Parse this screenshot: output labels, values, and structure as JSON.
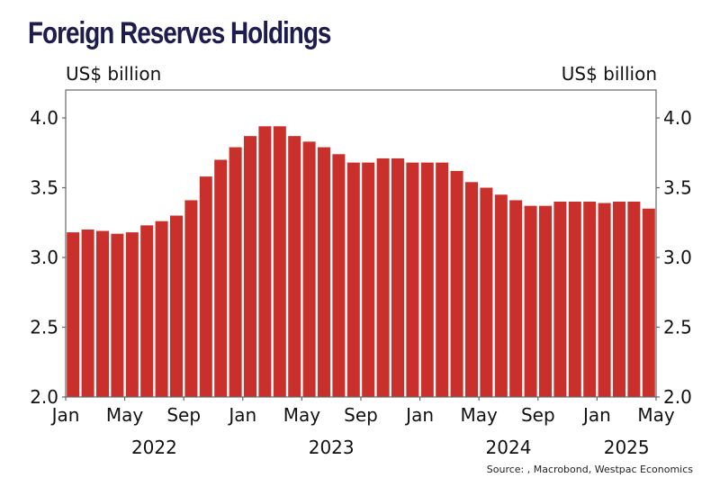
{
  "title": "Foreign Reserves Holdings",
  "left_unit": "US$ billion",
  "right_unit": "US$ billion",
  "source": "Source: , Macrobond, Westpac Economics",
  "colors": {
    "bar": "#c9302c",
    "title": "#1e1b4d",
    "axis": "#666666"
  },
  "chart_data": {
    "type": "bar",
    "title": "Foreign Reserves Holdings",
    "xlabel": "",
    "ylabel": "US$ billion",
    "ylim": [
      2.0,
      4.2
    ],
    "yticks": [
      "2.0",
      "2.5",
      "3.0",
      "3.5",
      "4.0"
    ],
    "ytick_values": [
      2.0,
      2.5,
      3.0,
      3.5,
      4.0
    ],
    "grid": false,
    "legend": "none",
    "categories": [
      "2022-01",
      "2022-02",
      "2022-03",
      "2022-04",
      "2022-05",
      "2022-06",
      "2022-07",
      "2022-08",
      "2022-09",
      "2022-10",
      "2022-11",
      "2022-12",
      "2023-01",
      "2023-02",
      "2023-03",
      "2023-04",
      "2023-05",
      "2023-06",
      "2023-07",
      "2023-08",
      "2023-09",
      "2023-10",
      "2023-11",
      "2023-12",
      "2024-01",
      "2024-02",
      "2024-03",
      "2024-04",
      "2024-05",
      "2024-06",
      "2024-07",
      "2024-08",
      "2024-09",
      "2024-10",
      "2024-11",
      "2024-12",
      "2025-01",
      "2025-02",
      "2025-03",
      "2025-04"
    ],
    "values": [
      3.18,
      3.2,
      3.19,
      3.17,
      3.18,
      3.23,
      3.26,
      3.3,
      3.41,
      3.58,
      3.7,
      3.79,
      3.87,
      3.94,
      3.94,
      3.87,
      3.83,
      3.79,
      3.74,
      3.68,
      3.68,
      3.71,
      3.71,
      3.68,
      3.68,
      3.68,
      3.62,
      3.54,
      3.5,
      3.45,
      3.41,
      3.37,
      3.37,
      3.4,
      3.4,
      3.4,
      3.39,
      3.4,
      3.4,
      3.35
    ],
    "xticks": [
      {
        "label": "Jan",
        "month_index": 0
      },
      {
        "label": "May",
        "month_index": 4
      },
      {
        "label": "Sep",
        "month_index": 8
      },
      {
        "label": "Jan",
        "month_index": 12
      },
      {
        "label": "May",
        "month_index": 16
      },
      {
        "label": "Sep",
        "month_index": 20
      },
      {
        "label": "Jan",
        "month_index": 24
      },
      {
        "label": "May",
        "month_index": 28
      },
      {
        "label": "Sep",
        "month_index": 32
      },
      {
        "label": "Jan",
        "month_index": 36
      },
      {
        "label": "May",
        "month_index": 40
      }
    ],
    "years": [
      {
        "label": "2022",
        "center_month": 6
      },
      {
        "label": "2023",
        "center_month": 18
      },
      {
        "label": "2024",
        "center_month": 30
      },
      {
        "label": "2025",
        "center_month": 38
      }
    ]
  }
}
